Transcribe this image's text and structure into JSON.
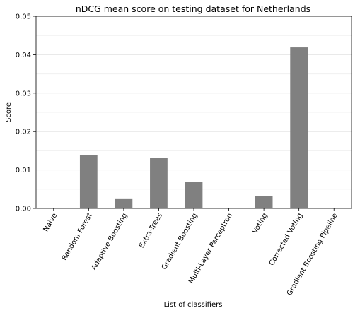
{
  "chart_data": {
    "type": "bar",
    "title": "nDCG mean score on testing dataset for Netherlands",
    "xlabel": "List of classifiers",
    "ylabel": "Score",
    "ylim": [
      0,
      0.05
    ],
    "yticks": [
      "0.00",
      "0.01",
      "0.02",
      "0.03",
      "0.04",
      "0.05"
    ],
    "ytick_values": [
      0,
      0.01,
      0.02,
      0.03,
      0.04,
      0.05
    ],
    "grid": true,
    "bar_color": "#808080",
    "categories": [
      "Naive",
      "Random Forest",
      "Adaptive Boosting",
      "Extra-Trees",
      "Gradient Boosting",
      "Multi-Layer Perceptron",
      "Voting",
      "Corrected Voting",
      "Gradient Boosting Pipeline"
    ],
    "values": [
      0.0,
      0.0138,
      0.0026,
      0.0131,
      0.0068,
      0.0,
      0.0033,
      0.0419,
      0.0
    ]
  }
}
